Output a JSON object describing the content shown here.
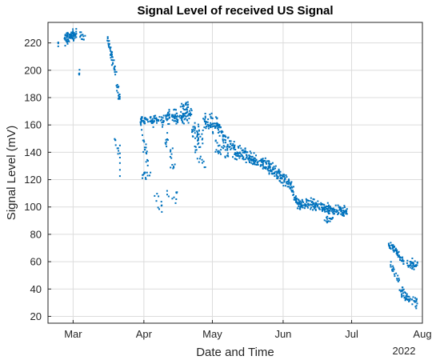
{
  "chart_data": {
    "type": "scatter",
    "title": "Signal Level of received US Signal",
    "xlabel": "Date and Time",
    "ylabel": "Signal Level (mV)",
    "year_label": "2022",
    "x_unit": "day of year 2022",
    "xlim": [
      49,
      213
    ],
    "ylim": [
      15,
      235
    ],
    "grid": true,
    "marker_color": "#0072BD",
    "x_ticks": [
      {
        "label": "Mar",
        "day": 60
      },
      {
        "label": "Apr",
        "day": 91
      },
      {
        "label": "May",
        "day": 121
      },
      {
        "label": "Jun",
        "day": 152
      },
      {
        "label": "Jul",
        "day": 182
      },
      {
        "label": "Aug",
        "day": 213
      }
    ],
    "y_ticks": [
      20,
      40,
      60,
      80,
      100,
      120,
      140,
      160,
      180,
      200,
      220
    ],
    "segments": [
      {
        "x0": 53.5,
        "x1": 53.5,
        "y0": 219,
        "y1": 219,
        "spread": 3,
        "count": 4
      },
      {
        "x0": 56.0,
        "x1": 61.5,
        "y0": 222,
        "y1": 227,
        "spread": 4,
        "count": 80
      },
      {
        "x0": 62.5,
        "x1": 63.0,
        "y0": 197,
        "y1": 199,
        "spread": 2,
        "count": 4
      },
      {
        "x0": 63.0,
        "x1": 65.5,
        "y0": 226,
        "y1": 225,
        "spread": 3,
        "count": 12
      },
      {
        "x0": 75.0,
        "x1": 77.5,
        "y0": 225,
        "y1": 205,
        "spread": 5,
        "count": 30
      },
      {
        "x0": 77.5,
        "x1": 80.5,
        "y0": 205,
        "y1": 178,
        "spread": 6,
        "count": 28
      },
      {
        "x0": 78.0,
        "x1": 80.0,
        "y0": 152,
        "y1": 138,
        "spread": 6,
        "count": 8
      },
      {
        "x0": 80.5,
        "x1": 80.5,
        "y0": 150,
        "y1": 122,
        "spread": 6,
        "count": 6
      },
      {
        "x0": 89.5,
        "x1": 100.0,
        "y0": 164,
        "y1": 163,
        "spread": 4,
        "count": 70
      },
      {
        "x0": 90.0,
        "x1": 93.0,
        "y0": 150,
        "y1": 135,
        "spread": 8,
        "count": 18
      },
      {
        "x0": 90.0,
        "x1": 94.0,
        "y0": 125,
        "y1": 122,
        "spread": 4,
        "count": 14
      },
      {
        "x0": 95.0,
        "x1": 99.0,
        "y0": 110,
        "y1": 100,
        "spread": 6,
        "count": 10
      },
      {
        "x0": 100.0,
        "x1": 105.0,
        "y0": 150,
        "y1": 130,
        "spread": 8,
        "count": 20
      },
      {
        "x0": 101.0,
        "x1": 106.0,
        "y0": 112,
        "y1": 108,
        "spread": 5,
        "count": 10
      },
      {
        "x0": 100.0,
        "x1": 112.0,
        "y0": 166,
        "y1": 167,
        "spread": 5,
        "count": 100
      },
      {
        "x0": 107.0,
        "x1": 110.5,
        "y0": 174,
        "y1": 175,
        "spread": 3,
        "count": 16
      },
      {
        "x0": 112.0,
        "x1": 117.0,
        "y0": 155,
        "y1": 150,
        "spread": 7,
        "count": 40
      },
      {
        "x0": 113.0,
        "x1": 118.0,
        "y0": 142,
        "y1": 132,
        "spread": 6,
        "count": 15
      },
      {
        "x0": 117.0,
        "x1": 125.0,
        "y0": 163,
        "y1": 158,
        "spread": 6,
        "count": 70
      },
      {
        "x0": 122.0,
        "x1": 128.0,
        "y0": 145,
        "y1": 140,
        "spread": 7,
        "count": 30
      },
      {
        "x0": 125.0,
        "x1": 132.0,
        "y0": 152,
        "y1": 138,
        "spread": 6,
        "count": 50
      },
      {
        "x0": 132.0,
        "x1": 145.0,
        "y0": 140,
        "y1": 130,
        "spread": 5,
        "count": 120
      },
      {
        "x0": 145.0,
        "x1": 155.0,
        "y0": 130,
        "y1": 117,
        "spread": 5,
        "count": 100
      },
      {
        "x0": 155.0,
        "x1": 158.0,
        "y0": 117,
        "y1": 103,
        "spread": 4,
        "count": 35
      },
      {
        "x0": 158.0,
        "x1": 170.0,
        "y0": 103,
        "y1": 100,
        "spread": 4,
        "count": 110
      },
      {
        "x0": 170.0,
        "x1": 180.0,
        "y0": 99,
        "y1": 97,
        "spread": 4,
        "count": 100
      },
      {
        "x0": 170.0,
        "x1": 174.0,
        "y0": 91,
        "y1": 91,
        "spread": 3,
        "count": 15
      },
      {
        "x0": 198.0,
        "x1": 203.0,
        "y0": 72,
        "y1": 66,
        "spread": 3,
        "count": 40
      },
      {
        "x0": 199.0,
        "x1": 203.0,
        "y0": 58,
        "y1": 45,
        "spread": 4,
        "count": 20
      },
      {
        "x0": 203.0,
        "x1": 205.0,
        "y0": 62,
        "y1": 60,
        "spread": 3,
        "count": 15
      },
      {
        "x0": 203.0,
        "x1": 206.0,
        "y0": 40,
        "y1": 34,
        "spread": 4,
        "count": 25
      },
      {
        "x0": 206.0,
        "x1": 211.0,
        "y0": 59,
        "y1": 57,
        "spread": 4,
        "count": 35
      },
      {
        "x0": 206.0,
        "x1": 211.0,
        "y0": 34,
        "y1": 30,
        "spread": 4,
        "count": 30
      }
    ]
  }
}
